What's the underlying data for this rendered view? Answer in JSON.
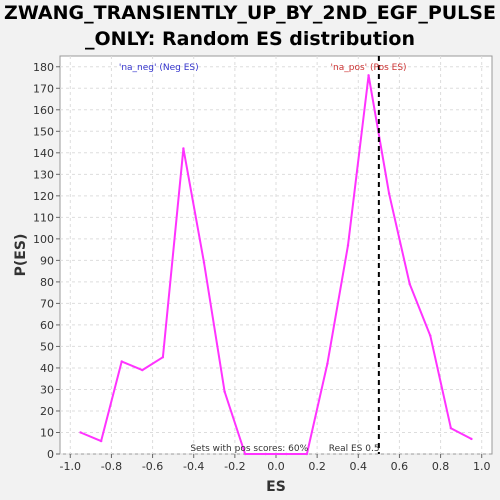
{
  "chart_data": {
    "type": "line",
    "title_line1": "ZWANG_TRANSIENTLY_UP_BY_2ND_EGF_PULSE",
    "title_line2": "_ONLY: Random ES distribution",
    "xlabel": "ES",
    "ylabel": "P(ES)",
    "xlim": [
      -1.05,
      1.05
    ],
    "ylim": [
      0,
      185
    ],
    "x_ticks": [
      -1.0,
      -0.8,
      -0.6,
      -0.4,
      -0.2,
      0.0,
      0.2,
      0.4,
      0.6,
      0.8,
      1.0
    ],
    "x_tick_labels": [
      "-1.0",
      "-0.8",
      "-0.6",
      "-0.4",
      "-0.2",
      "0.0",
      "0.2",
      "0.4",
      "0.6",
      "0.8",
      "1.0"
    ],
    "y_ticks": [
      0,
      10,
      20,
      30,
      40,
      50,
      60,
      70,
      80,
      90,
      100,
      110,
      120,
      130,
      140,
      150,
      160,
      170,
      180
    ],
    "y_tick_labels": [
      "0",
      "10",
      "20",
      "30",
      "40",
      "50",
      "60",
      "70",
      "80",
      "90",
      "100",
      "110",
      "120",
      "130",
      "140",
      "150",
      "160",
      "170",
      "180"
    ],
    "grid": true,
    "series": [
      {
        "name": "Random ES distribution",
        "color": "#ff33ff",
        "x": [
          -0.95,
          -0.85,
          -0.75,
          -0.65,
          -0.55,
          -0.45,
          -0.35,
          -0.25,
          -0.15,
          -0.05,
          0.05,
          0.15,
          0.25,
          0.35,
          0.45,
          0.55,
          0.65,
          0.75,
          0.85,
          0.95
        ],
        "y": [
          10,
          6,
          43,
          39,
          45,
          142,
          89,
          29,
          0,
          0,
          0,
          0,
          42,
          97,
          176,
          121,
          79,
          55,
          12,
          7
        ]
      }
    ],
    "real_es": 0.5,
    "real_es_line_color": "#000000",
    "annotations": {
      "neg_label": "'na_neg' (Neg ES)",
      "neg_color": "#3333cc",
      "pos_label": "'na_pos' (Pos ES)",
      "pos_color": "#cc3333",
      "sets_text": "Sets with pos scores: 60%",
      "real_es_text": "Real ES 0.5"
    }
  }
}
